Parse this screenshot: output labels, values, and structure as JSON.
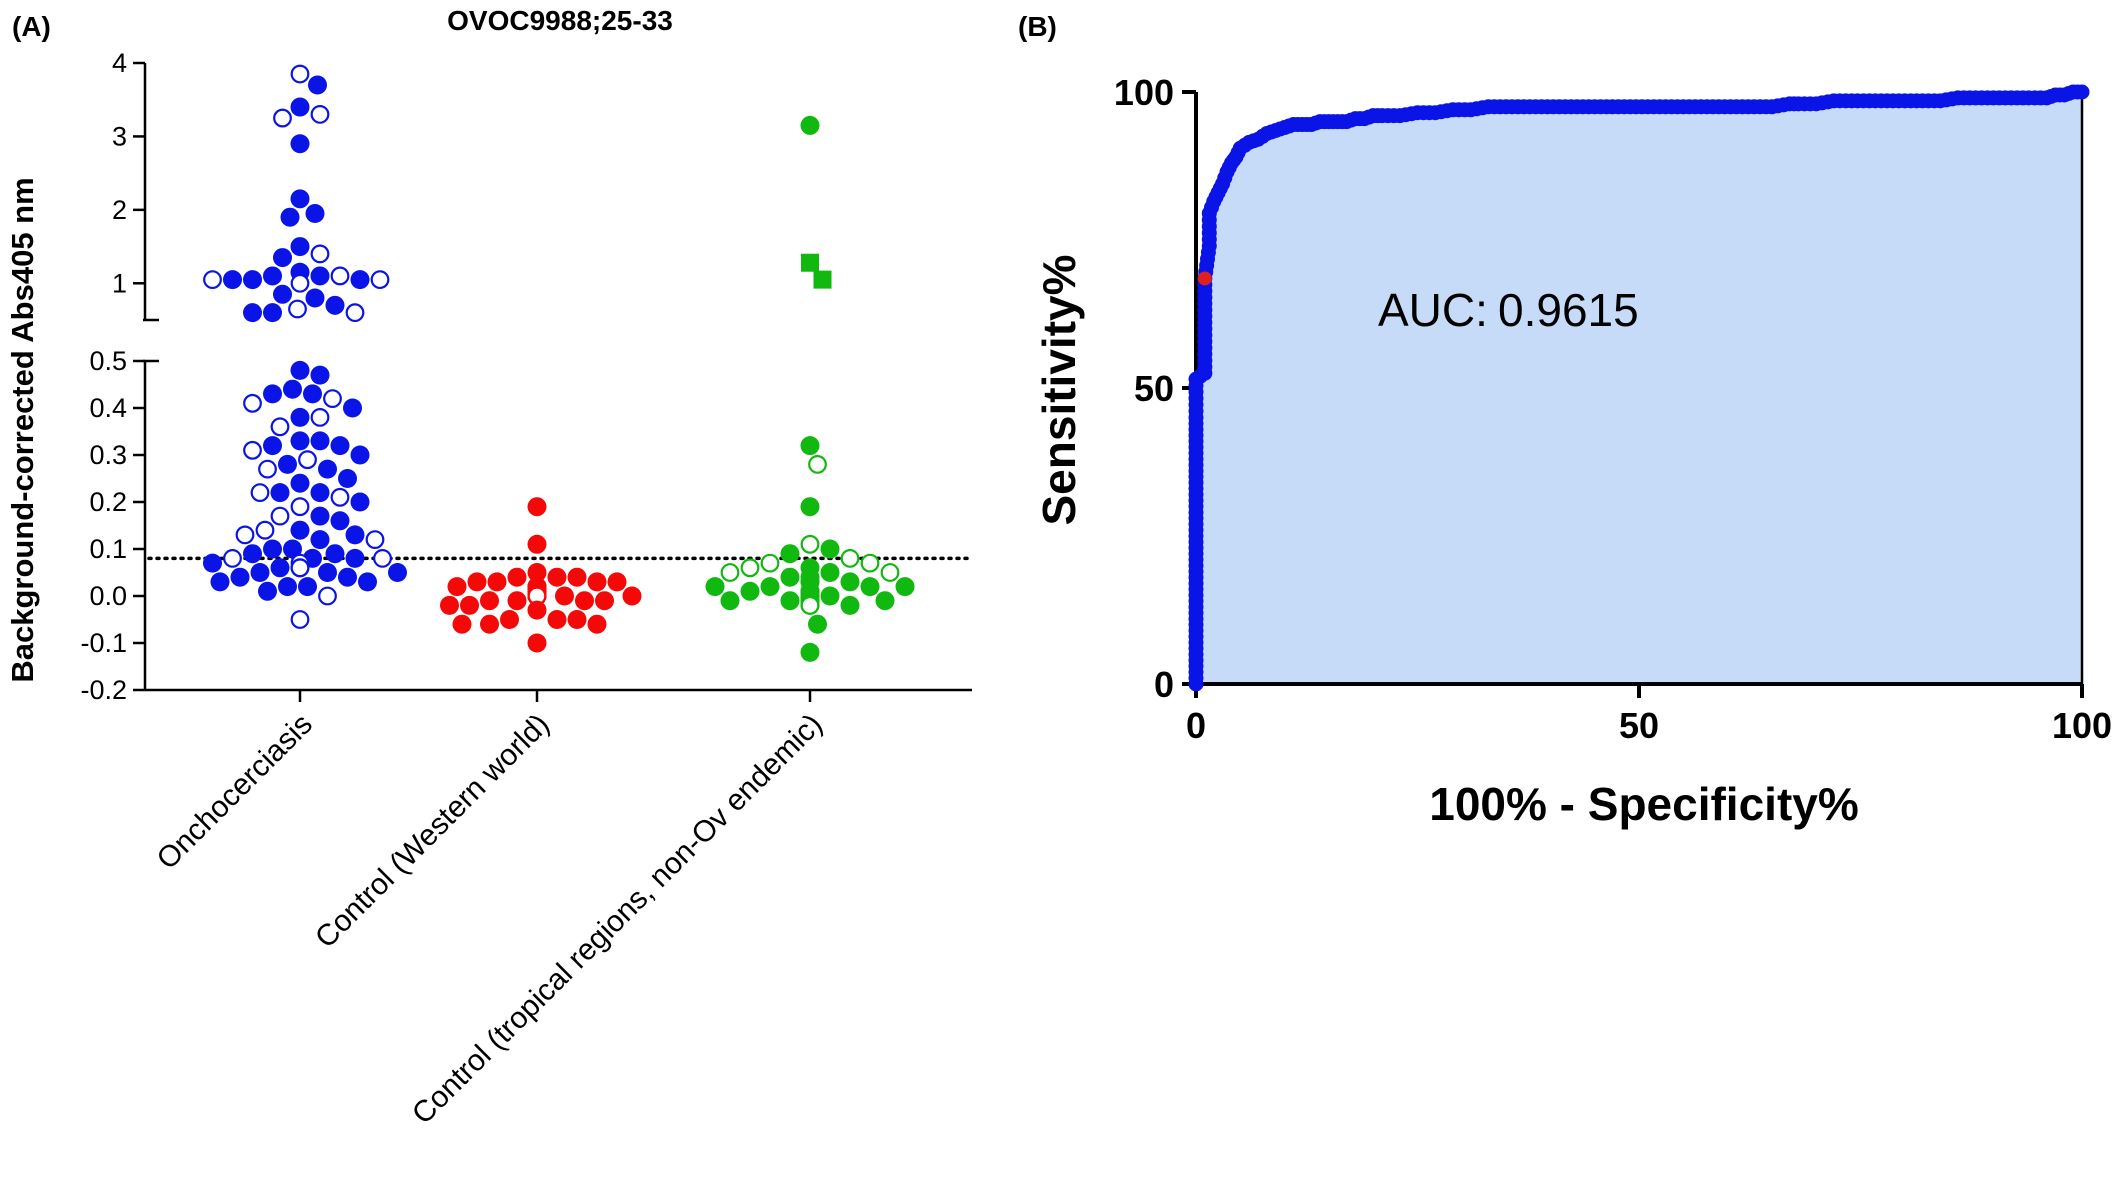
{
  "panel_a_label": "(A)",
  "panel_b_label": "(B)",
  "colors": {
    "onchocerciasis": "#0a14e6",
    "control_western": "#f40808",
    "control_tropical": "#10b810",
    "roc_line": "#0a14e6",
    "roc_fill": "#c6dbf7",
    "roc_marker_highlight": "#e02020",
    "axis": "#000000"
  },
  "chart_data": [
    {
      "type": "scatter",
      "subtype": "dot-plot",
      "title": "OVOC9988;25-33",
      "xlabel": "",
      "ylabel": "Background-corrected Abs405 nm",
      "categories": [
        "Onchocerciasis",
        "Control (Western world)",
        "Control (tropical regions, non-Ov endemic)"
      ],
      "y_axis_broken": true,
      "ylim_lower_segment": [
        -0.2,
        0.5
      ],
      "ylim_upper_segment": [
        0.5,
        4
      ],
      "yticks_lower": [
        "-0.2",
        "-0.1",
        "0.0",
        "0.1",
        "0.2",
        "0.3",
        "0.4",
        "0.5"
      ],
      "yticks_upper": [
        "1",
        "2",
        "3",
        "4"
      ],
      "cutoff": 0.08,
      "cutoff_style": "dotted",
      "series": [
        {
          "category": "Onchocerciasis",
          "filled_values": [
            3.7,
            3.4,
            2.9,
            2.15,
            1.95,
            1.9,
            1.5,
            1.35,
            1.15,
            1.1,
            1.1,
            1.05,
            1.05,
            1.05,
            0.85,
            0.8,
            0.7,
            0.6,
            0.6,
            0.48,
            0.47,
            0.44,
            0.43,
            0.43,
            0.4,
            0.38,
            0.33,
            0.33,
            0.32,
            0.32,
            0.3,
            0.28,
            0.27,
            0.25,
            0.24,
            0.22,
            0.22,
            0.2,
            0.17,
            0.16,
            0.14,
            0.13,
            0.12,
            0.1,
            0.1,
            0.09,
            0.09,
            0.08,
            0.08,
            0.07,
            0.06,
            0.06,
            0.05,
            0.05,
            0.05,
            0.04,
            0.04,
            0.03,
            0.03,
            0.02,
            0.02,
            0.01
          ],
          "open_values": [
            3.85,
            3.3,
            3.25,
            1.4,
            1.1,
            1.05,
            1.05,
            1.0,
            0.65,
            0.6,
            0.42,
            0.41,
            0.38,
            0.36,
            0.31,
            0.29,
            0.27,
            0.22,
            0.21,
            0.19,
            0.17,
            0.14,
            0.13,
            0.12,
            0.08,
            0.08,
            0.07,
            0.06,
            0.0,
            -0.05
          ]
        },
        {
          "category": "Control (Western world)",
          "filled_values": [
            0.19,
            0.11,
            0.05,
            0.04,
            0.04,
            0.04,
            0.03,
            0.03,
            0.03,
            0.03,
            0.02,
            0.02,
            0.02,
            0.02,
            0.02,
            0.01,
            0.01,
            0.01,
            0.01,
            0.01,
            0.01,
            0.01,
            0.01,
            0.0,
            0.0,
            0.0,
            0.0,
            0.0,
            0.0,
            0.0,
            0.0,
            -0.01,
            -0.01,
            -0.01,
            -0.01,
            -0.02,
            -0.02,
            -0.03,
            -0.05,
            -0.05,
            -0.05,
            -0.06,
            -0.06,
            -0.06,
            -0.1
          ],
          "open_values": [
            0.0
          ]
        },
        {
          "category": "Control (tropical regions, non-Ov endemic)",
          "filled_values": [
            3.15,
            0.32,
            0.19,
            0.1,
            0.09,
            0.06,
            0.05,
            0.04,
            0.04,
            0.03,
            0.03,
            0.03,
            0.02,
            0.02,
            0.02,
            0.02,
            0.01,
            0.01,
            0.01,
            0.01,
            0.0,
            0.0,
            0.0,
            0.0,
            -0.01,
            -0.01,
            -0.01,
            -0.01,
            -0.01,
            -0.01,
            -0.02,
            -0.02,
            -0.06,
            -0.12
          ],
          "open_values": [
            0.28,
            0.11,
            0.08,
            0.07,
            0.07,
            0.06,
            0.05,
            0.05,
            -0.02
          ],
          "square_values": [
            1.28,
            1.05
          ]
        }
      ]
    },
    {
      "type": "line",
      "subtype": "roc-curve",
      "xlabel": "100% - Specificity%",
      "ylabel": "Sensitivity%",
      "xlim": [
        0,
        100
      ],
      "ylim": [
        0,
        100
      ],
      "xticks": [
        "0",
        "50",
        "100"
      ],
      "yticks": [
        "0",
        "50",
        "100"
      ],
      "fill_under_curve": true,
      "annotation": {
        "label": "AUC:",
        "value": "0.9615"
      },
      "series": [
        {
          "x": [
            0,
            0,
            0,
            0,
            0,
            0,
            0,
            0,
            0,
            0,
            0,
            0.5,
            1,
            1,
            1,
            1.5,
            1.5,
            2,
            2.5,
            3,
            3.5,
            4,
            4.5,
            5,
            6,
            7,
            8,
            9,
            10,
            11,
            12,
            13,
            14,
            15,
            16,
            17,
            18,
            19,
            20,
            21,
            23,
            25,
            27,
            29,
            31,
            33,
            35,
            37,
            39,
            41,
            43,
            45,
            47,
            49,
            51,
            53,
            55,
            57,
            59,
            61,
            63,
            65,
            67,
            68,
            70,
            72,
            74,
            76,
            78,
            80,
            82,
            84,
            86,
            88,
            90,
            92,
            94,
            96,
            97,
            98,
            99,
            100
          ],
          "y": [
            0,
            5,
            10,
            15,
            20,
            25,
            30,
            35,
            40,
            45,
            51.5,
            52,
            52.5,
            60,
            68.5,
            74,
            79.5,
            81.5,
            83,
            84.5,
            86.5,
            88,
            89,
            90.5,
            91.5,
            92,
            93,
            93.5,
            94,
            94.5,
            94.5,
            94.5,
            95,
            95,
            95,
            95,
            95.5,
            95.5,
            96,
            96,
            96,
            96.5,
            96.5,
            97,
            97,
            97.5,
            97.5,
            97.5,
            97.5,
            97.5,
            97.5,
            97.5,
            97.5,
            97.5,
            97.5,
            97.5,
            97.5,
            97.5,
            97.5,
            97.5,
            97.5,
            97.5,
            98,
            98,
            98,
            98.5,
            98.5,
            98.5,
            98.5,
            98.5,
            98.5,
            98.5,
            99,
            99,
            99,
            99,
            99,
            99,
            99.5,
            99.5,
            100,
            100
          ],
          "highlight_point": [
            1,
            68.5
          ]
        }
      ]
    }
  ]
}
